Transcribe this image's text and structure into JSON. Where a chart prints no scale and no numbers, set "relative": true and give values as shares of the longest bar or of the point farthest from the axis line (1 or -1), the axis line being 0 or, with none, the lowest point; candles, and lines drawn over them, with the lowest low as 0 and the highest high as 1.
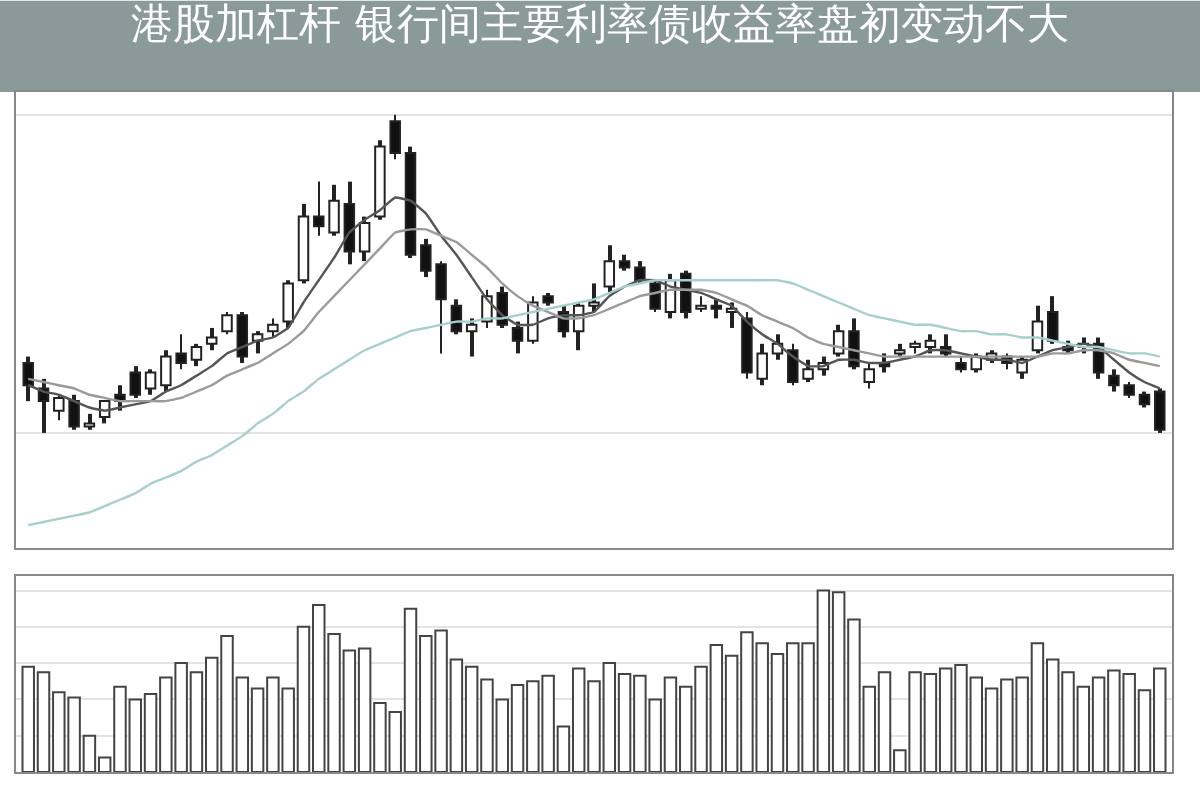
{
  "chart_data": [
    {
      "type": "candlestick",
      "title": "港股加杠杆 银行间主要利率债收益率盘初变动不大",
      "relative": true,
      "grid": "y",
      "categories": [
        null,
        null,
        null,
        null,
        null,
        null,
        null,
        null,
        null,
        null,
        null,
        null,
        null,
        null,
        null,
        null,
        null,
        null,
        null,
        null,
        null,
        null,
        null,
        null,
        null,
        null,
        null,
        null,
        null,
        null,
        null,
        null,
        null,
        null,
        null,
        null,
        null,
        null,
        null,
        null,
        null,
        null,
        null,
        null,
        null,
        null,
        null,
        null,
        null,
        null,
        null,
        null,
        null,
        null,
        null,
        null,
        null,
        null,
        null,
        null,
        null,
        null,
        null,
        null,
        null,
        null,
        null,
        null,
        null,
        null,
        null,
        null,
        null,
        null,
        null
      ],
      "ohlc": [
        [
          0.22,
          0.24,
          0.1,
          0.15
        ],
        [
          0.14,
          0.17,
          0,
          0.1
        ],
        [
          0.07,
          0.12,
          0.04,
          0.11
        ],
        [
          0.1,
          0.12,
          0.01,
          0.02
        ],
        [
          0.02,
          0.06,
          0.01,
          0.03
        ],
        [
          0.05,
          0.1,
          0.03,
          0.1
        ],
        [
          0.12,
          0.15,
          0.07,
          0.1
        ],
        [
          0.19,
          0.21,
          0.11,
          0.12
        ],
        [
          0.14,
          0.2,
          0.12,
          0.19
        ],
        [
          0.15,
          0.26,
          0.13,
          0.24
        ],
        [
          0.25,
          0.31,
          0.2,
          0.22
        ],
        [
          0.23,
          0.28,
          0.21,
          0.27
        ],
        [
          0.28,
          0.33,
          0.26,
          0.3
        ],
        [
          0.32,
          0.38,
          0.31,
          0.37
        ],
        [
          0.37,
          0.38,
          0.22,
          0.24
        ],
        [
          0.29,
          0.32,
          0.25,
          0.31
        ],
        [
          0.32,
          0.36,
          0.3,
          0.34
        ],
        [
          0.35,
          0.48,
          0.33,
          0.47
        ],
        [
          0.48,
          0.72,
          0.47,
          0.68
        ],
        [
          0.68,
          0.79,
          0.62,
          0.65
        ],
        [
          0.63,
          0.78,
          0.62,
          0.73
        ],
        [
          0.72,
          0.79,
          0.53,
          0.57
        ],
        [
          0.57,
          0.68,
          0.54,
          0.66
        ],
        [
          0.68,
          0.92,
          0.67,
          0.9
        ],
        [
          0.98,
          1.0,
          0.86,
          0.88
        ],
        [
          0.88,
          0.9,
          0.55,
          0.56
        ],
        [
          0.59,
          0.61,
          0.49,
          0.51
        ],
        [
          0.53,
          0.54,
          0.25,
          0.42
        ],
        [
          0.4,
          0.42,
          0.31,
          0.32
        ],
        [
          0.32,
          0.36,
          0.24,
          0.34
        ],
        [
          0.35,
          0.45,
          0.33,
          0.43
        ],
        [
          0.44,
          0.46,
          0.33,
          0.34
        ],
        [
          0.33,
          0.35,
          0.25,
          0.29
        ],
        [
          0.29,
          0.43,
          0.28,
          0.41
        ],
        [
          0.43,
          0.44,
          0.4,
          0.41
        ],
        [
          0.38,
          0.4,
          0.3,
          0.32
        ],
        [
          0.32,
          0.41,
          0.26,
          0.4
        ],
        [
          0.4,
          0.47,
          0.38,
          0.41
        ],
        [
          0.46,
          0.59,
          0.44,
          0.54
        ],
        [
          0.54,
          0.56,
          0.51,
          0.52
        ],
        [
          0.52,
          0.54,
          0.47,
          0.48
        ],
        [
          0.47,
          0.48,
          0.38,
          0.39
        ],
        [
          0.38,
          0.5,
          0.36,
          0.48
        ],
        [
          0.5,
          0.51,
          0.36,
          0.38
        ],
        [
          0.39,
          0.43,
          0.38,
          0.4
        ],
        [
          0.4,
          0.42,
          0.36,
          0.39
        ],
        [
          0.38,
          0.41,
          0.33,
          0.39
        ],
        [
          0.36,
          0.38,
          0.17,
          0.19
        ],
        [
          0.17,
          0.28,
          0.15,
          0.25
        ],
        [
          0.25,
          0.31,
          0.23,
          0.28
        ],
        [
          0.26,
          0.28,
          0.15,
          0.16
        ],
        [
          0.17,
          0.23,
          0.16,
          0.2
        ],
        [
          0.2,
          0.24,
          0.18,
          0.22
        ],
        [
          0.25,
          0.34,
          0.24,
          0.32
        ],
        [
          0.32,
          0.36,
          0.2,
          0.21
        ],
        [
          0.16,
          0.22,
          0.14,
          0.2
        ],
        [
          0.22,
          0.25,
          0.19,
          0.21
        ],
        [
          0.25,
          0.28,
          0.24,
          0.26
        ],
        [
          0.27,
          0.29,
          0.25,
          0.28
        ],
        [
          0.27,
          0.31,
          0.25,
          0.29
        ],
        [
          0.27,
          0.31,
          0.24,
          0.25
        ],
        [
          0.22,
          0.24,
          0.19,
          0.2
        ],
        [
          0.2,
          0.25,
          0.19,
          0.24
        ],
        [
          0.23,
          0.26,
          0.22,
          0.25
        ],
        [
          0.24,
          0.25,
          0.2,
          0.22
        ],
        [
          0.19,
          0.24,
          0.17,
          0.23
        ],
        [
          0.26,
          0.4,
          0.25,
          0.35
        ],
        [
          0.38,
          0.43,
          0.28,
          0.29
        ],
        [
          0.27,
          0.29,
          0.25,
          0.26
        ],
        [
          0.27,
          0.3,
          0.25,
          0.28
        ],
        [
          0.28,
          0.3,
          0.17,
          0.19
        ],
        [
          0.18,
          0.2,
          0.13,
          0.15
        ],
        [
          0.15,
          0.16,
          0.11,
          0.12
        ],
        [
          0.12,
          0.13,
          0.08,
          0.09
        ],
        [
          0.13,
          0.14,
          0,
          0.01
        ]
      ],
      "series": [
        {
          "type": "line",
          "color": "#555555",
          "values": [
            0.15,
            0.13,
            0.12,
            0.1,
            0.08,
            0.07,
            0.08,
            0.09,
            0.1,
            0.13,
            0.15,
            0.18,
            0.21,
            0.25,
            0.27,
            0.29,
            0.3,
            0.33,
            0.41,
            0.48,
            0.55,
            0.63,
            0.67,
            0.7,
            0.74,
            0.73,
            0.69,
            0.62,
            0.56,
            0.49,
            0.42,
            0.37,
            0.34,
            0.34,
            0.36,
            0.37,
            0.37,
            0.38,
            0.43,
            0.46,
            0.48,
            0.48,
            0.46,
            0.45,
            0.44,
            0.42,
            0.4,
            0.35,
            0.31,
            0.28,
            0.24,
            0.21,
            0.21,
            0.23,
            0.23,
            0.22,
            0.22,
            0.23,
            0.24,
            0.26,
            0.26,
            0.25,
            0.24,
            0.23,
            0.23,
            0.22,
            0.24,
            0.26,
            0.27,
            0.28,
            0.27,
            0.23,
            0.19,
            0.16,
            0.14
          ]
        },
        {
          "type": "line",
          "color": "#9a9a9a",
          "values": [
            0.17,
            0.16,
            0.15,
            0.14,
            0.12,
            0.11,
            0.1,
            0.1,
            0.1,
            0.1,
            0.11,
            0.13,
            0.15,
            0.18,
            0.2,
            0.22,
            0.25,
            0.28,
            0.32,
            0.38,
            0.43,
            0.48,
            0.53,
            0.58,
            0.63,
            0.64,
            0.64,
            0.62,
            0.6,
            0.56,
            0.52,
            0.47,
            0.43,
            0.4,
            0.38,
            0.36,
            0.36,
            0.37,
            0.39,
            0.41,
            0.43,
            0.44,
            0.45,
            0.45,
            0.45,
            0.44,
            0.42,
            0.4,
            0.37,
            0.35,
            0.33,
            0.3,
            0.28,
            0.27,
            0.26,
            0.25,
            0.24,
            0.24,
            0.24,
            0.24,
            0.24,
            0.24,
            0.24,
            0.24,
            0.24,
            0.24,
            0.24,
            0.25,
            0.25,
            0.26,
            0.26,
            0.25,
            0.23,
            0.22,
            0.21
          ]
        },
        {
          "type": "line",
          "color": "#a8d0cb",
          "values": [
            -0.29,
            -0.28,
            -0.27,
            -0.26,
            -0.25,
            -0.23,
            -0.21,
            -0.19,
            -0.16,
            -0.14,
            -0.12,
            -0.09,
            -0.07,
            -0.04,
            -0.01,
            0.03,
            0.06,
            0.1,
            0.13,
            0.17,
            0.2,
            0.23,
            0.26,
            0.28,
            0.3,
            0.32,
            0.33,
            0.34,
            0.35,
            0.35,
            0.36,
            0.36,
            0.37,
            0.38,
            0.39,
            0.4,
            0.41,
            0.42,
            0.44,
            0.46,
            0.47,
            0.48,
            0.48,
            0.48,
            0.48,
            0.48,
            0.48,
            0.48,
            0.48,
            0.48,
            0.47,
            0.45,
            0.43,
            0.41,
            0.39,
            0.37,
            0.36,
            0.35,
            0.34,
            0.34,
            0.33,
            0.32,
            0.32,
            0.31,
            0.31,
            0.3,
            0.3,
            0.29,
            0.28,
            0.27,
            0.27,
            0.26,
            0.25,
            0.25,
            0.24
          ]
        }
      ]
    },
    {
      "type": "bar",
      "relative": true,
      "grid": "y",
      "color": "#444444",
      "categories": [
        null,
        null,
        null,
        null,
        null,
        null,
        null,
        null,
        null,
        null,
        null,
        null,
        null,
        null,
        null,
        null,
        null,
        null,
        null,
        null,
        null,
        null,
        null,
        null,
        null,
        null,
        null,
        null,
        null,
        null,
        null,
        null,
        null,
        null,
        null,
        null,
        null,
        null,
        null,
        null,
        null,
        null,
        null,
        null,
        null,
        null,
        null,
        null,
        null,
        null,
        null,
        null,
        null,
        null,
        null,
        null,
        null,
        null,
        null,
        null,
        null,
        null,
        null,
        null,
        null,
        null,
        null,
        null,
        null,
        null,
        null,
        null,
        null,
        null,
        null
      ],
      "values": [
        0.58,
        0.55,
        0.44,
        0.41,
        0.2,
        0.08,
        0.47,
        0.4,
        0.43,
        0.52,
        0.6,
        0.55,
        0.63,
        0.75,
        0.52,
        0.46,
        0.52,
        0.46,
        0.8,
        0.92,
        0.76,
        0.67,
        0.68,
        0.38,
        0.33,
        0.9,
        0.75,
        0.78,
        0.62,
        0.58,
        0.51,
        0.4,
        0.48,
        0.5,
        0.53,
        0.25,
        0.57,
        0.5,
        0.6,
        0.54,
        0.53,
        0.4,
        0.52,
        0.47,
        0.58,
        0.7,
        0.64,
        0.77,
        0.71,
        0.65,
        0.71,
        0.71,
        1.0,
        0.99,
        0.84,
        0.47,
        0.55,
        0.12,
        0.55,
        0.54,
        0.57,
        0.59,
        0.52,
        0.46,
        0.51,
        0.52,
        0.71,
        0.62,
        0.55,
        0.47,
        0.52,
        0.56,
        0.54,
        0.45,
        0.57
      ]
    }
  ]
}
